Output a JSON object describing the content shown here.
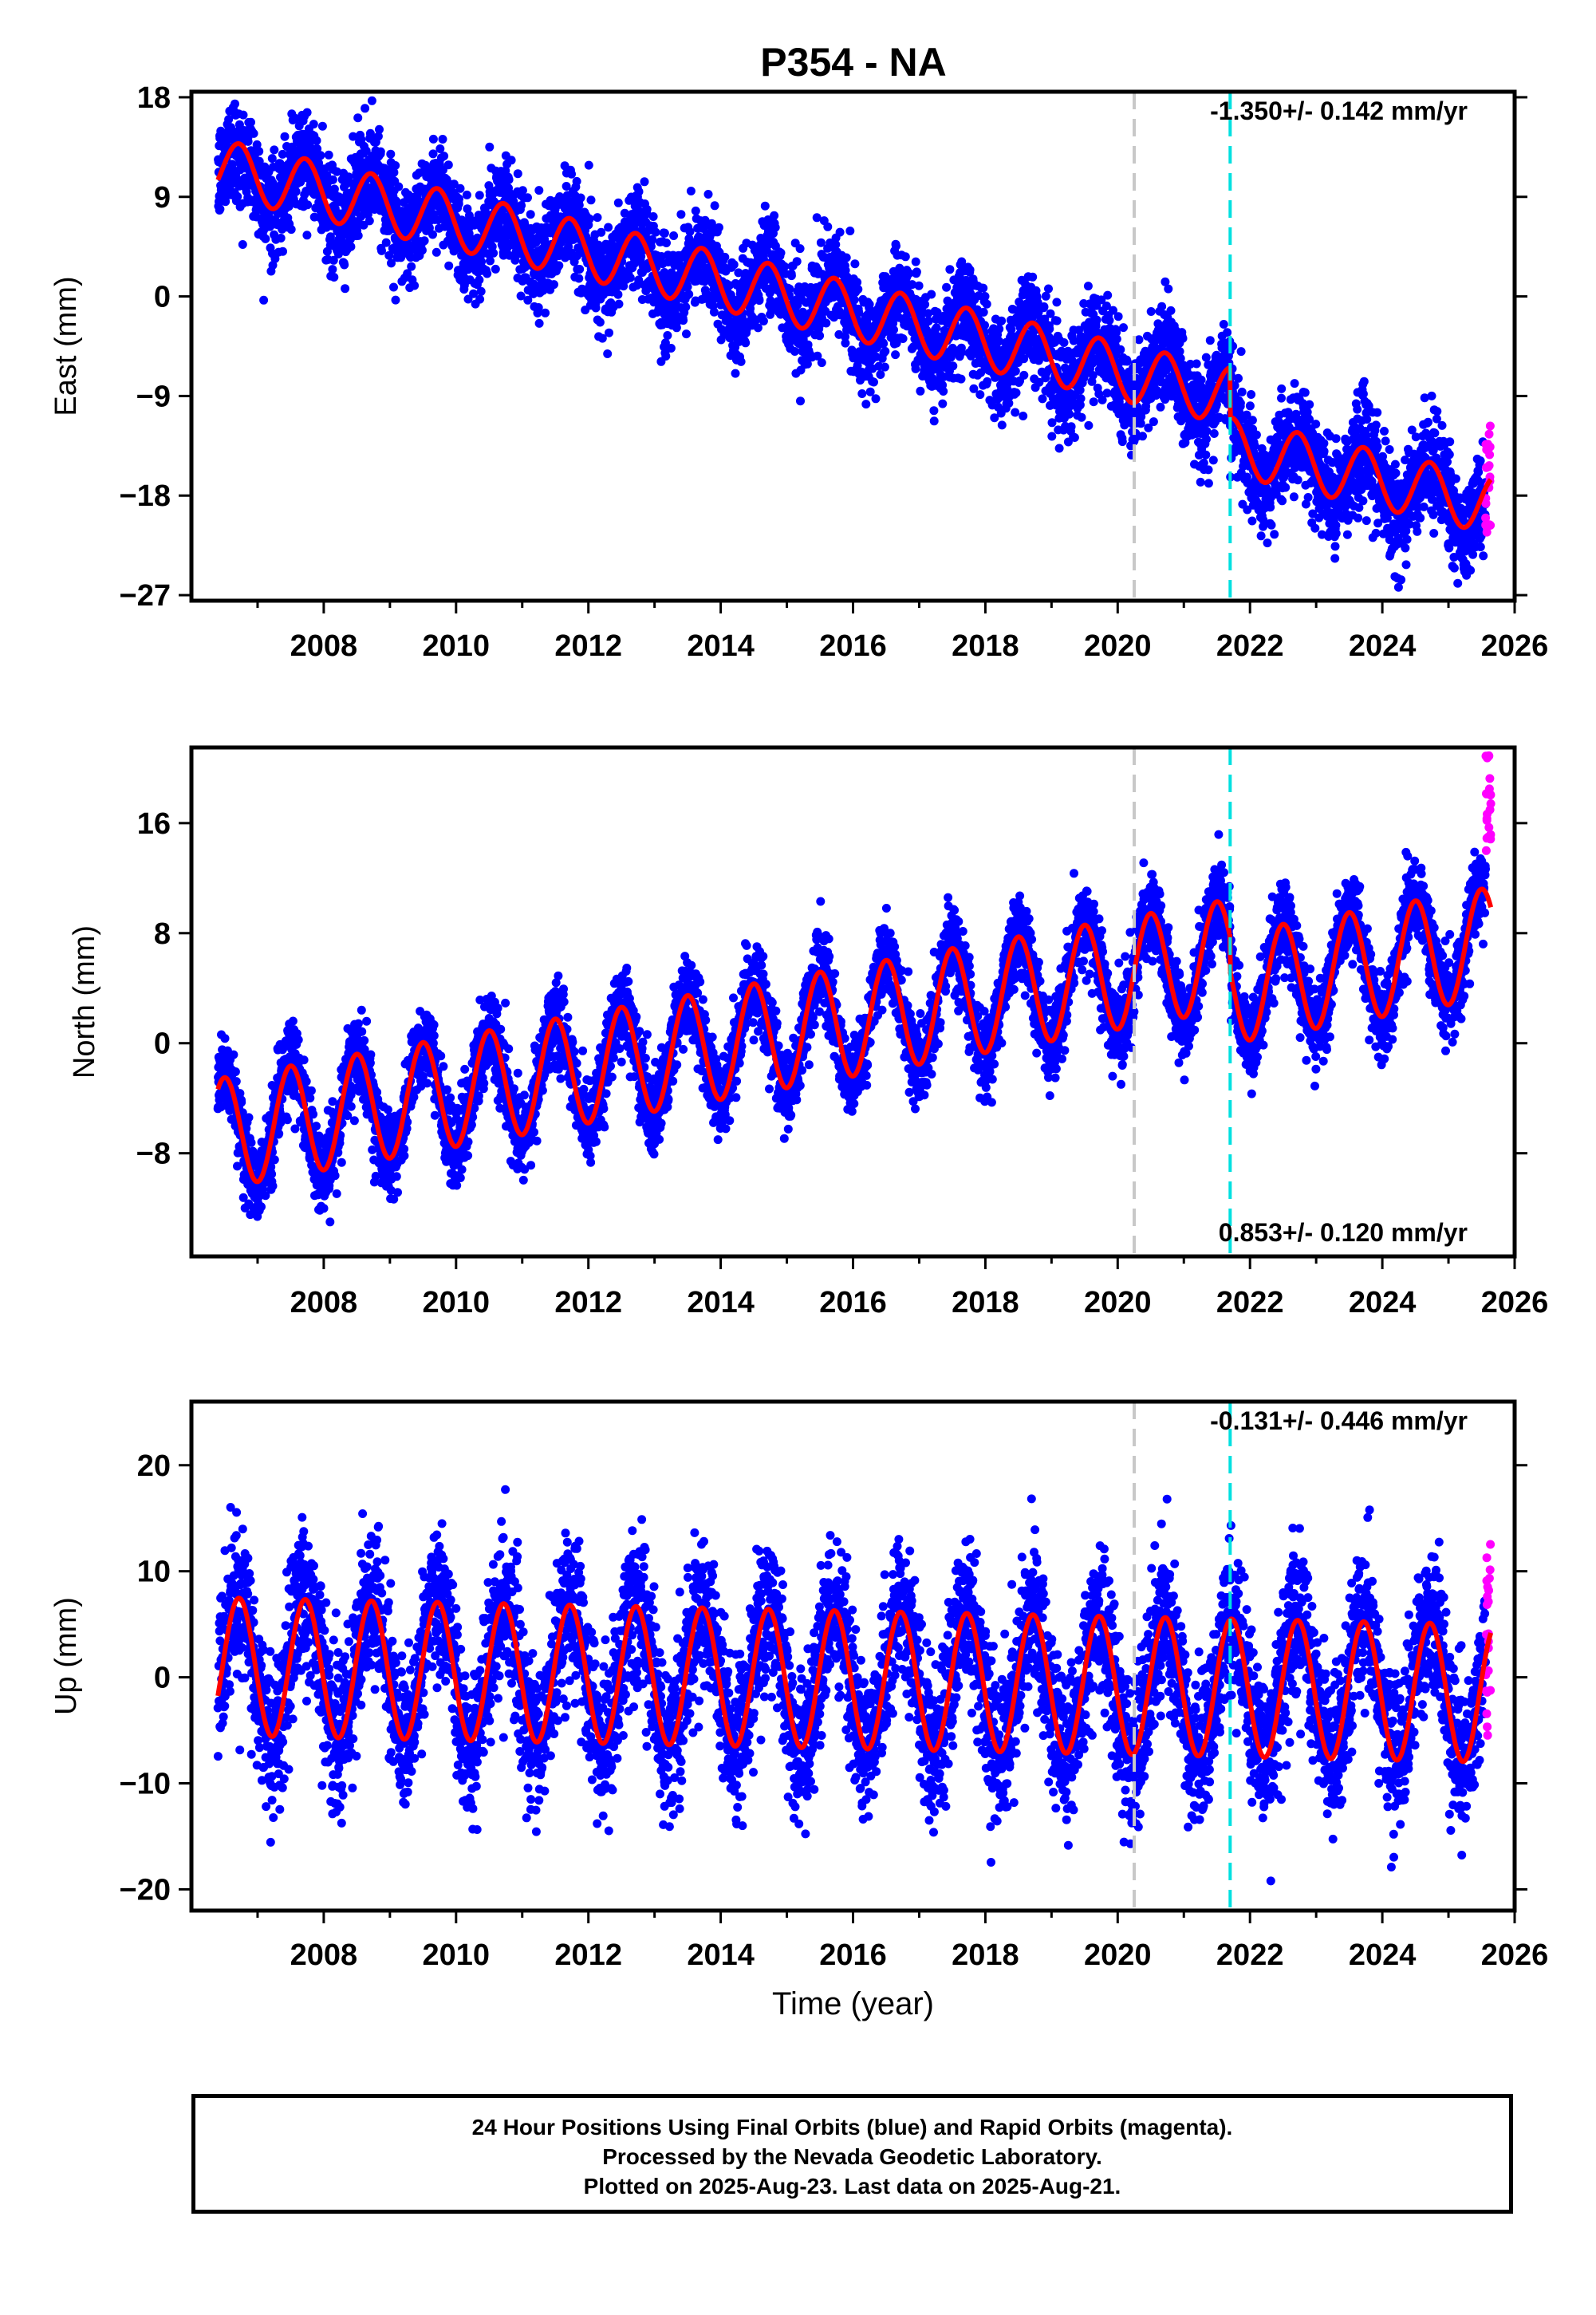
{
  "title": "P354 - NA",
  "colors": {
    "final_orbits": "#0000ff",
    "rapid_orbits": "#ff00ff",
    "model_fit": "#ff0000",
    "reference_line_gray": "#c8c8c8",
    "reference_line_cyan": "#00e0e0"
  },
  "chart_data": [
    {
      "type": "scatter",
      "component": "East",
      "ylabel": "East (mm)",
      "xlabel": "",
      "xlim": [
        2006.0,
        2026.0
      ],
      "ylim": [
        -27.5,
        18.5
      ],
      "x_ticks": [
        2008,
        2010,
        2012,
        2014,
        2016,
        2018,
        2020,
        2022,
        2024,
        2026
      ],
      "y_ticks": [
        18,
        9,
        0,
        -9,
        -18,
        -27
      ],
      "velocity_label": "-1.350+/- 0.142 mm/yr",
      "vertical_lines": [
        {
          "x": 2020.25,
          "style": "gray-dashed"
        },
        {
          "x": 2021.7,
          "style": "cyan-dashed"
        }
      ],
      "data_start": 2006.4,
      "data_end": 2025.64,
      "model": {
        "offset_at_2006_5": 11.5,
        "trend_per_year": -1.35,
        "annual_amplitude": 2.6,
        "phase_peak_year_fraction": 0.72,
        "step_at_2021_7": -4.5,
        "gap": [
          2023.6,
          2024.05
        ]
      },
      "scatter_sd": 2.2,
      "rapid_points": {
        "x_range": [
          2025.56,
          2025.64
        ],
        "y_range": [
          -22.5,
          -11.5
        ]
      }
    },
    {
      "type": "scatter",
      "component": "North",
      "ylabel": "North (mm)",
      "xlabel": "",
      "xlim": [
        2006.0,
        2026.0
      ],
      "ylim": [
        -15.5,
        21.5
      ],
      "x_ticks": [
        2008,
        2010,
        2012,
        2014,
        2016,
        2018,
        2020,
        2022,
        2024,
        2026
      ],
      "y_ticks": [
        16,
        8,
        0,
        -8
      ],
      "velocity_label": "0.853+/- 0.120 mm/yr",
      "vertical_lines": [
        {
          "x": 2020.25,
          "style": "gray-dashed"
        },
        {
          "x": 2021.7,
          "style": "cyan-dashed"
        }
      ],
      "data_start": 2006.4,
      "data_end": 2025.64,
      "model": {
        "offset_at_2006_5": -6.5,
        "trend_per_year": 0.853,
        "annual_amplitude": 4.0,
        "phase_peak_year_fraction": 0.5,
        "step_at_2021_7": -2.5,
        "gap": [
          2023.6,
          2024.05
        ]
      },
      "scatter_sd": 1.5,
      "rapid_points": {
        "x_range": [
          2025.56,
          2025.64
        ],
        "y_range": [
          13.5,
          21.0
        ]
      }
    },
    {
      "type": "scatter",
      "component": "Up",
      "ylabel": "Up (mm)",
      "xlabel": "Time (year)",
      "xlim": [
        2006.0,
        2026.0
      ],
      "ylim": [
        -22,
        26
      ],
      "x_ticks": [
        2008,
        2010,
        2012,
        2014,
        2016,
        2018,
        2020,
        2022,
        2024,
        2026
      ],
      "y_ticks": [
        20,
        10,
        0,
        -10,
        -20
      ],
      "velocity_label": "-0.131+/- 0.446 mm/yr",
      "vertical_lines": [
        {
          "x": 2020.25,
          "style": "gray-dashed"
        },
        {
          "x": 2021.7,
          "style": "cyan-dashed"
        }
      ],
      "data_start": 2006.4,
      "data_end": 2025.64,
      "model": {
        "offset_at_2006_5": 1.0,
        "trend_per_year": -0.131,
        "annual_amplitude": 6.5,
        "phase_peak_year_fraction": 0.72,
        "step_at_2021_7": 0.0,
        "gap": [
          2023.6,
          2024.05
        ]
      },
      "scatter_sd": 3.6,
      "rapid_points": {
        "x_range": [
          2025.56,
          2025.64
        ],
        "y_range": [
          -6.0,
          13.0
        ]
      }
    }
  ],
  "footer": {
    "line1": "24 Hour Positions Using Final Orbits (blue) and Rapid Orbits (magenta).",
    "line2": "Processed by the Nevada Geodetic Laboratory.",
    "line3": "Plotted on 2025-Aug-23. Last data on 2025-Aug-21."
  }
}
